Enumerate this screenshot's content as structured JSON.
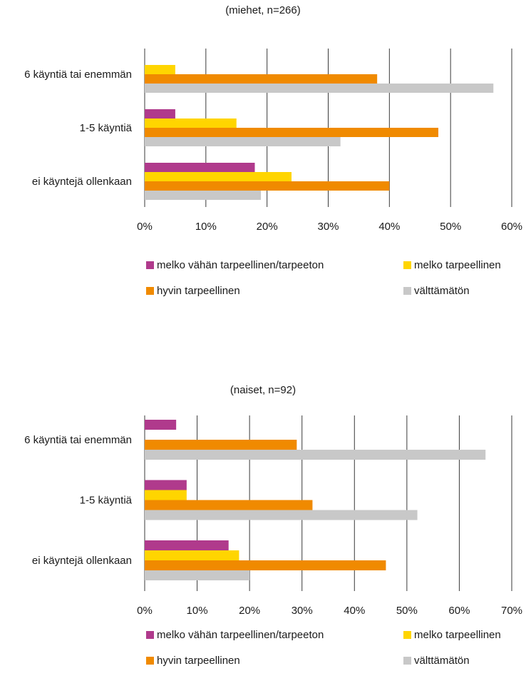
{
  "chart_data": [
    {
      "type": "bar",
      "orientation": "horizontal",
      "title": "(miehet, n=266)",
      "categories": [
        "6 käyntiä tai enemmän",
        "1-5 käyntiä",
        "ei käyntejä ollenkaan"
      ],
      "series": [
        {
          "name": "melko vähän tarpeellinen/tarpeeton",
          "color": "#B03A8C",
          "values": [
            0,
            5,
            18
          ]
        },
        {
          "name": "melko tarpeellinen",
          "color": "#FFD500",
          "values": [
            5,
            15,
            24
          ]
        },
        {
          "name": "hyvin tarpeellinen",
          "color": "#F08A00",
          "values": [
            38,
            48,
            40
          ]
        },
        {
          "name": "välttämätön",
          "color": "#C8C8C8",
          "values": [
            57,
            32,
            19
          ]
        }
      ],
      "xlim": [
        0,
        60
      ],
      "ticks": [
        "0%",
        "10%",
        "20%",
        "30%",
        "40%",
        "50%",
        "60%"
      ],
      "grid": true,
      "legend": "bottom"
    },
    {
      "type": "bar",
      "orientation": "horizontal",
      "title": "(naiset, n=92)",
      "categories": [
        "6 käyntiä tai enemmän",
        "1-5 käyntiä",
        "ei käyntejä ollenkaan"
      ],
      "series": [
        {
          "name": "melko vähän tarpeellinen/tarpeeton",
          "color": "#B03A8C",
          "values": [
            6,
            8,
            16
          ]
        },
        {
          "name": "melko tarpeellinen",
          "color": "#FFD500",
          "values": [
            0,
            8,
            18
          ]
        },
        {
          "name": "hyvin tarpeellinen",
          "color": "#F08A00",
          "values": [
            29,
            32,
            46
          ]
        },
        {
          "name": "välttämätön",
          "color": "#C8C8C8",
          "values": [
            65,
            52,
            20
          ]
        }
      ],
      "xlim": [
        0,
        70
      ],
      "ticks": [
        "0%",
        "10%",
        "20%",
        "30%",
        "40%",
        "50%",
        "60%",
        "70%"
      ],
      "grid": true,
      "legend": "bottom"
    }
  ]
}
